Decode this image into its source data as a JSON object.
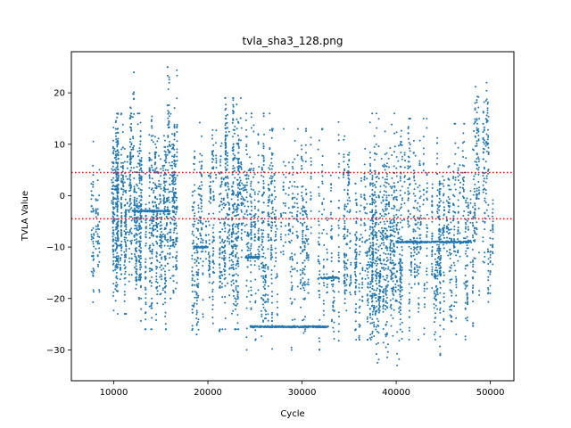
{
  "chart_data": {
    "type": "scatter",
    "title": "tvla_sha3_128.png",
    "xlabel": "Cycle",
    "ylabel": "TVLA Value",
    "xlim": [
      5500,
      52500
    ],
    "ylim": [
      -36,
      28
    ],
    "xticks": [
      10000,
      20000,
      30000,
      40000,
      50000
    ],
    "xtick_labels": [
      "10000",
      "20000",
      "30000",
      "40000",
      "50000"
    ],
    "yticks": [
      -30,
      -20,
      -10,
      0,
      10,
      20
    ],
    "ytick_labels": [
      "−30",
      "−20",
      "−10",
      "0",
      "10",
      "20"
    ],
    "grid": false,
    "legend": "none",
    "series": [
      {
        "color": "#1f77b4",
        "marker": "point",
        "clusters": [
          {
            "x": [
              7600,
              8700
            ],
            "y": [
              -22,
              14
            ],
            "n": 90
          },
          {
            "x": [
              9700,
              12300
            ],
            "y": [
              -23,
              16
            ],
            "n": 600
          },
          {
            "x": [
              12300,
              15700
            ],
            "y": [
              -26,
              16
            ],
            "n": 650
          },
          {
            "x": [
              15700,
              16800
            ],
            "y": [
              -20,
              25
            ],
            "n": 260
          },
          {
            "x": [
              11300,
              12300
            ],
            "y": [
              -6,
              24
            ],
            "n": 40
          },
          {
            "x": [
              18300,
              21300
            ],
            "y": [
              -27,
              16
            ],
            "n": 330
          },
          {
            "x": [
              21300,
              23700
            ],
            "y": [
              -26,
              19
            ],
            "n": 520
          },
          {
            "x": [
              23700,
              26800
            ],
            "y": [
              -30,
              16
            ],
            "n": 420
          },
          {
            "x": [
              26800,
              32700
            ],
            "y": [
              -30,
              13
            ],
            "n": 420
          },
          {
            "x": [
              32700,
              34000
            ],
            "y": [
              -30,
              17
            ],
            "n": 80
          },
          {
            "x": [
              34400,
              37400
            ],
            "y": [
              -28,
              15
            ],
            "n": 360
          },
          {
            "x": [
              37400,
              40700
            ],
            "y": [
              -33,
              16
            ],
            "n": 760
          },
          {
            "x": [
              40700,
              44500
            ],
            "y": [
              -28,
              15
            ],
            "n": 360
          },
          {
            "x": [
              44500,
              48300
            ],
            "y": [
              -31,
              14
            ],
            "n": 440
          },
          {
            "x": [
              48300,
              50400
            ],
            "y": [
              -25,
              22
            ],
            "n": 240
          }
        ],
        "hlines": [
          {
            "y": -25.5,
            "x": [
              24500,
              32800
            ]
          },
          {
            "y": -9,
            "x": [
              40000,
              48000
            ]
          },
          {
            "y": -16,
            "x": [
              32000,
              33900
            ]
          },
          {
            "y": -12,
            "x": [
              24000,
              25500
            ]
          },
          {
            "y": -3,
            "x": [
              12000,
              16000
            ]
          },
          {
            "y": -10,
            "x": [
              18500,
              20000
            ]
          }
        ]
      }
    ],
    "reference_lines": [
      {
        "y": 4.5,
        "color": "#ff0000",
        "style": "dotted"
      },
      {
        "y": -4.5,
        "color": "#ff0000",
        "style": "dotted"
      }
    ]
  }
}
